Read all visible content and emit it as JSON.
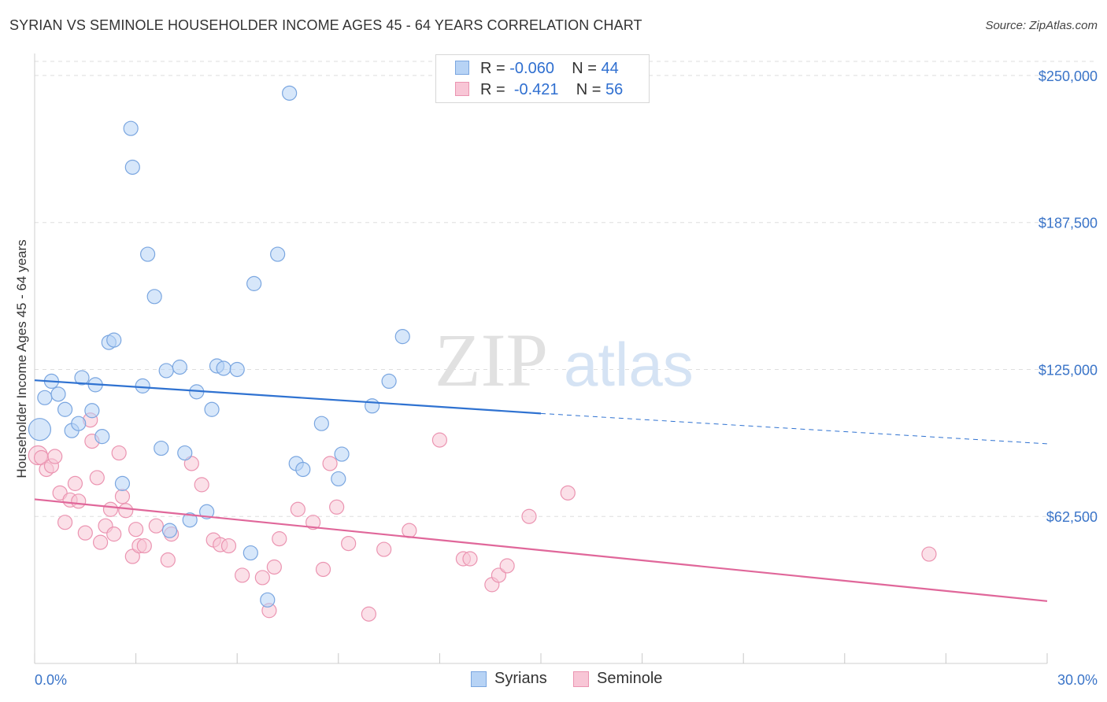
{
  "title": "SYRIAN VS SEMINOLE HOUSEHOLDER INCOME AGES 45 - 64 YEARS CORRELATION CHART",
  "source": "Source: ZipAtlas.com",
  "watermark": {
    "zip": "ZIP",
    "atlas": "atlas"
  },
  "legend_top": {
    "rows": [
      {
        "r_label": "R =",
        "r_value": "-0.060",
        "n_label": "N =",
        "n_value": "44"
      },
      {
        "r_label": "R =",
        "r_value": "-0.421",
        "n_label": "N =",
        "n_value": "56"
      }
    ]
  },
  "legend_bottom": {
    "items": [
      "Syrians",
      "Seminole"
    ]
  },
  "colors": {
    "syrians_fill": "#b7d3f5",
    "syrians_stroke": "#7aa6e0",
    "syrians_line": "#2f72d1",
    "seminole_fill": "#f8c6d6",
    "seminole_stroke": "#eb94b1",
    "seminole_line": "#e0679a",
    "axis_label": "#3a74c8",
    "grid": "#dedede"
  },
  "chart_data": {
    "type": "scatter",
    "title": "SYRIAN VS SEMINOLE HOUSEHOLDER INCOME AGES 45 - 64 YEARS CORRELATION CHART",
    "xlabel": "",
    "ylabel": "Householder Income Ages 45 - 64 years",
    "x_tick_labels": [
      "0.0%",
      "30.0%"
    ],
    "y_tick_labels": [
      "$62,500",
      "$125,000",
      "$187,500",
      "$250,000"
    ],
    "y_ticks": [
      62500,
      125000,
      187500,
      250000
    ],
    "xlim": [
      0,
      30
    ],
    "ylim": [
      0,
      256000
    ],
    "grid": true,
    "series": [
      {
        "name": "Syrians",
        "r": -0.06,
        "n": 44,
        "trend": {
          "x": [
            0,
            15
          ],
          "y": [
            120400,
            106300
          ],
          "dashed_to": [
            30,
            93400
          ]
        },
        "points": [
          [
            0.15,
            99500,
            14
          ],
          [
            0.3,
            113000,
            9
          ],
          [
            0.5,
            120000,
            9
          ],
          [
            0.7,
            114500,
            9
          ],
          [
            0.9,
            108000,
            9
          ],
          [
            1.1,
            99000,
            9
          ],
          [
            1.3,
            102000,
            9
          ],
          [
            1.4,
            121500,
            9
          ],
          [
            1.7,
            107500,
            9
          ],
          [
            1.8,
            118500,
            9
          ],
          [
            2.0,
            96500,
            9
          ],
          [
            2.2,
            136500,
            9
          ],
          [
            2.35,
            137500,
            9
          ],
          [
            2.6,
            76500,
            9
          ],
          [
            2.85,
            227500,
            9
          ],
          [
            2.9,
            211000,
            9
          ],
          [
            3.2,
            118000,
            9
          ],
          [
            3.35,
            174000,
            9
          ],
          [
            3.55,
            156000,
            9
          ],
          [
            3.75,
            91500,
            9
          ],
          [
            3.9,
            124500,
            9
          ],
          [
            4.0,
            56500,
            9
          ],
          [
            4.3,
            126000,
            9
          ],
          [
            4.45,
            89500,
            9
          ],
          [
            4.6,
            61000,
            9
          ],
          [
            4.8,
            115500,
            9
          ],
          [
            5.1,
            64500,
            9
          ],
          [
            5.25,
            108000,
            9
          ],
          [
            5.4,
            126500,
            9
          ],
          [
            5.6,
            125500,
            9
          ],
          [
            6.0,
            125000,
            9
          ],
          [
            6.4,
            47000,
            9
          ],
          [
            6.5,
            161500,
            9
          ],
          [
            6.9,
            27000,
            9
          ],
          [
            7.2,
            174000,
            9
          ],
          [
            7.55,
            242500,
            9
          ],
          [
            7.75,
            85000,
            9
          ],
          [
            7.95,
            82500,
            9
          ],
          [
            8.5,
            102000,
            9
          ],
          [
            9.0,
            78500,
            9
          ],
          [
            9.1,
            89000,
            9
          ],
          [
            10.0,
            109500,
            9
          ],
          [
            10.5,
            120000,
            9
          ],
          [
            10.9,
            139000,
            9
          ]
        ]
      },
      {
        "name": "Seminole",
        "r": -0.421,
        "n": 56,
        "trend": {
          "x": [
            0,
            30
          ],
          "y": [
            69800,
            26500
          ]
        },
        "points": [
          [
            0.1,
            88500,
            12
          ],
          [
            0.2,
            87500,
            9
          ],
          [
            0.35,
            82500,
            9
          ],
          [
            0.5,
            84000,
            9
          ],
          [
            0.6,
            88000,
            9
          ],
          [
            0.75,
            72500,
            9
          ],
          [
            0.9,
            60000,
            9
          ],
          [
            1.05,
            69500,
            9
          ],
          [
            1.2,
            76500,
            9
          ],
          [
            1.3,
            69000,
            9
          ],
          [
            1.5,
            55500,
            9
          ],
          [
            1.65,
            103500,
            9
          ],
          [
            1.7,
            94500,
            9
          ],
          [
            1.85,
            79000,
            9
          ],
          [
            1.95,
            51500,
            9
          ],
          [
            2.1,
            58500,
            9
          ],
          [
            2.25,
            65500,
            9
          ],
          [
            2.35,
            55000,
            9
          ],
          [
            2.5,
            89500,
            9
          ],
          [
            2.6,
            71000,
            9
          ],
          [
            2.7,
            65000,
            9
          ],
          [
            2.9,
            45500,
            9
          ],
          [
            3.0,
            57000,
            9
          ],
          [
            3.1,
            50000,
            9
          ],
          [
            3.25,
            50000,
            9
          ],
          [
            3.6,
            58500,
            9
          ],
          [
            3.95,
            44000,
            9
          ],
          [
            4.05,
            55000,
            9
          ],
          [
            4.65,
            85000,
            9
          ],
          [
            4.95,
            76000,
            9
          ],
          [
            5.3,
            52500,
            9
          ],
          [
            5.5,
            50500,
            9
          ],
          [
            5.75,
            50000,
            9
          ],
          [
            6.15,
            37500,
            9
          ],
          [
            6.75,
            36500,
            9
          ],
          [
            6.95,
            22500,
            9
          ],
          [
            7.1,
            41000,
            9
          ],
          [
            7.25,
            53000,
            9
          ],
          [
            7.8,
            65500,
            9
          ],
          [
            8.25,
            60000,
            9
          ],
          [
            8.55,
            40000,
            9
          ],
          [
            8.75,
            85000,
            9
          ],
          [
            8.95,
            66500,
            9
          ],
          [
            9.3,
            51000,
            9
          ],
          [
            9.9,
            21000,
            9
          ],
          [
            10.35,
            48500,
            9
          ],
          [
            11.1,
            56500,
            9
          ],
          [
            12.0,
            95000,
            9
          ],
          [
            12.7,
            44500,
            9
          ],
          [
            12.9,
            44500,
            9
          ],
          [
            13.55,
            33500,
            9
          ],
          [
            13.75,
            37500,
            9
          ],
          [
            14.0,
            41500,
            9
          ],
          [
            14.65,
            62500,
            9
          ],
          [
            15.8,
            72500,
            9
          ],
          [
            26.5,
            46500,
            9
          ]
        ]
      }
    ]
  }
}
